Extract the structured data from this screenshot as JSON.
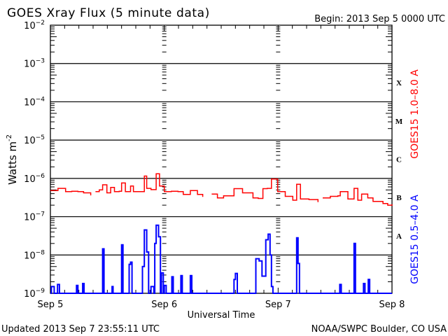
{
  "chart_data": {
    "type": "line",
    "title": "GOES Xray Flux (5 minute data)",
    "begin_label": "Begin:  2013 Sep 5 0000 UTC",
    "xlabel": "Universal Time",
    "ylabel": "Watts m",
    "ylabel_sup": "-2",
    "x_unit": "hours since 2013 Sep 5 0000 UTC",
    "xlim": [
      0,
      72
    ],
    "x_ticks": [
      {
        "hour": 0,
        "label": "Sep 5"
      },
      {
        "hour": 24,
        "label": "Sep 6"
      },
      {
        "hour": 48,
        "label": "Sep 7"
      },
      {
        "hour": 72,
        "label": "Sep 8"
      }
    ],
    "y_scale": "log",
    "ylim": [
      1e-09,
      0.01
    ],
    "y_ticks": [
      {
        "exp": -2
      },
      {
        "exp": -3
      },
      {
        "exp": -4
      },
      {
        "exp": -5
      },
      {
        "exp": -6
      },
      {
        "exp": -7
      },
      {
        "exp": -8
      },
      {
        "exp": -9
      }
    ],
    "flare_classes": [
      {
        "label": "X",
        "exp": -3.5
      },
      {
        "label": "M",
        "exp": -4.5
      },
      {
        "label": "C",
        "exp": -5.5
      },
      {
        "label": "B",
        "exp": -6.5
      },
      {
        "label": "A",
        "exp": -7.5
      }
    ],
    "series": [
      {
        "name": "GOES15 1.0–8.0 A",
        "color": "#ff0000",
        "points": [
          [
            0,
            4.8e-07
          ],
          [
            1.6,
            5.5e-07
          ],
          [
            3.2,
            4.5e-07
          ],
          [
            4.5,
            4.6e-07
          ],
          [
            5.8,
            4.5e-07
          ],
          [
            7,
            4.2e-07
          ],
          [
            8.5,
            3.6e-07
          ],
          [
            9,
            null
          ],
          [
            9.5,
            4.5e-07
          ],
          [
            10.3,
            5e-07
          ],
          [
            11,
            6.8e-07
          ],
          [
            11.9,
            4.2e-07
          ],
          [
            12.7,
            5.8e-07
          ],
          [
            13.5,
            4.5e-07
          ],
          [
            14.5,
            4.6e-07
          ],
          [
            15,
            7.6e-07
          ],
          [
            15.8,
            4.5e-07
          ],
          [
            16.9,
            6.3e-07
          ],
          [
            17.5,
            4.5e-07
          ],
          [
            19.2,
            4.5e-07
          ],
          [
            19.8,
            1.15e-06
          ],
          [
            20.3,
            5.5e-07
          ],
          [
            21.2,
            5.1e-07
          ],
          [
            22.3,
            1.32e-06
          ],
          [
            23,
            6.3e-07
          ],
          [
            24,
            4.5e-07
          ],
          [
            25.5,
            4.6e-07
          ],
          [
            26.9,
            4.5e-07
          ],
          [
            28,
            3.8e-07
          ],
          [
            29.5,
            4.8e-07
          ],
          [
            31,
            3.8e-07
          ],
          [
            32.1,
            3.3e-07
          ],
          [
            32.6,
            null
          ],
          [
            34,
            3.9e-07
          ],
          [
            35.2,
            3.1e-07
          ],
          [
            36.5,
            3.5e-07
          ],
          [
            38.7,
            5.4e-07
          ],
          [
            40.5,
            4.2e-07
          ],
          [
            42.7,
            3.1e-07
          ],
          [
            43.8,
            3e-07
          ],
          [
            44.8,
            5.4e-07
          ],
          [
            45.7,
            5.5e-07
          ],
          [
            46.6,
            9.6e-07
          ],
          [
            47.9,
            4.5e-07
          ],
          [
            49.5,
            3.4e-07
          ],
          [
            51.1,
            2.7e-07
          ],
          [
            51.9,
            7e-07
          ],
          [
            52.7,
            2.9e-07
          ],
          [
            54.5,
            2.8e-07
          ],
          [
            56.4,
            2.4e-07
          ],
          [
            56.9,
            null
          ],
          [
            57.4,
            3.1e-07
          ],
          [
            59,
            3.4e-07
          ],
          [
            60.6,
            3.5e-07
          ],
          [
            61.1,
            4.5e-07
          ],
          [
            62.7,
            2.9e-07
          ],
          [
            64,
            5.5e-07
          ],
          [
            64.8,
            2.7e-07
          ],
          [
            65.6,
            3.9e-07
          ],
          [
            66.9,
            3.1e-07
          ],
          [
            68,
            2.5e-07
          ],
          [
            70.1,
            2.2e-07
          ],
          [
            71.1,
            2e-07
          ],
          [
            72,
            2.1e-07
          ]
        ]
      },
      {
        "name": "GOES15 0.5–4.0 A",
        "color": "#0000ff",
        "points": [
          [
            0,
            1e-09
          ],
          [
            0.2,
            1.5e-09
          ],
          [
            0.8,
            1e-09
          ],
          [
            1.5,
            1.7e-09
          ],
          [
            1.9,
            1e-09
          ],
          [
            5.3,
            1e-09
          ],
          [
            5.5,
            1.6e-09
          ],
          [
            5.8,
            1e-09
          ],
          [
            6.7,
            1e-09
          ],
          [
            6.8,
            1.8e-09
          ],
          [
            7.1,
            1e-09
          ],
          [
            10.8,
            1e-09
          ],
          [
            11,
            1.45e-08
          ],
          [
            11.3,
            1e-09
          ],
          [
            12.9,
            1e-09
          ],
          [
            13,
            1.5e-09
          ],
          [
            13.2,
            1e-09
          ],
          [
            14.8,
            1e-09
          ],
          [
            15,
            1.85e-08
          ],
          [
            15.3,
            1e-09
          ],
          [
            16.5,
            1e-09
          ],
          [
            16.6,
            5.7e-09
          ],
          [
            16.9,
            6.5e-09
          ],
          [
            17.2,
            1e-09
          ],
          [
            19.2,
            1e-09
          ],
          [
            19.4,
            5e-09
          ],
          [
            19.8,
            4.5e-08
          ],
          [
            20.3,
            1.2e-08
          ],
          [
            20.7,
            1e-09
          ],
          [
            21.2,
            1.5e-09
          ],
          [
            21.8,
            1e-09
          ],
          [
            22,
            2e-08
          ],
          [
            22.3,
            6e-08
          ],
          [
            22.8,
            3e-08
          ],
          [
            23.2,
            1e-09
          ],
          [
            23.4,
            3.4e-09
          ],
          [
            23.8,
            1e-09
          ],
          [
            24,
            1.6e-09
          ],
          [
            24.4,
            1e-09
          ],
          [
            25.5,
            1e-09
          ],
          [
            25.6,
            2.7e-09
          ],
          [
            25.9,
            1e-09
          ],
          [
            27.4,
            1e-09
          ],
          [
            27.5,
            2.9e-09
          ],
          [
            27.8,
            1e-09
          ],
          [
            29.4,
            1e-09
          ],
          [
            29.5,
            2.9e-09
          ],
          [
            29.8,
            1e-09
          ],
          [
            38.5,
            1e-09
          ],
          [
            38.7,
            2.3e-09
          ],
          [
            39,
            3.3e-09
          ],
          [
            39.4,
            1e-09
          ],
          [
            43.1,
            1e-09
          ],
          [
            43.3,
            8e-09
          ],
          [
            44,
            7e-09
          ],
          [
            44.6,
            2.8e-09
          ],
          [
            45.4,
            2.5e-08
          ],
          [
            45.9,
            3.5e-08
          ],
          [
            46.3,
            1e-08
          ],
          [
            46.6,
            1.5e-09
          ],
          [
            46.9,
            1e-09
          ],
          [
            51.7,
            1e-09
          ],
          [
            51.9,
            2.8e-08
          ],
          [
            52.2,
            6e-09
          ],
          [
            52.5,
            1e-09
          ],
          [
            60.8,
            1e-09
          ],
          [
            61,
            1.7e-09
          ],
          [
            61.3,
            1e-09
          ],
          [
            63.8,
            1e-09
          ],
          [
            64,
            2e-08
          ],
          [
            64.3,
            1e-09
          ],
          [
            65.9,
            1e-09
          ],
          [
            66,
            1.8e-09
          ],
          [
            66.3,
            1e-09
          ],
          [
            66.8,
            1e-09
          ],
          [
            67,
            2.3e-09
          ],
          [
            67.3,
            1e-09
          ],
          [
            72,
            1e-09
          ]
        ]
      }
    ]
  },
  "footer": {
    "updated": "Updated 2013 Sep  7 23:55:11 UTC",
    "credit": "NOAA/SWPC Boulder, CO USA"
  }
}
